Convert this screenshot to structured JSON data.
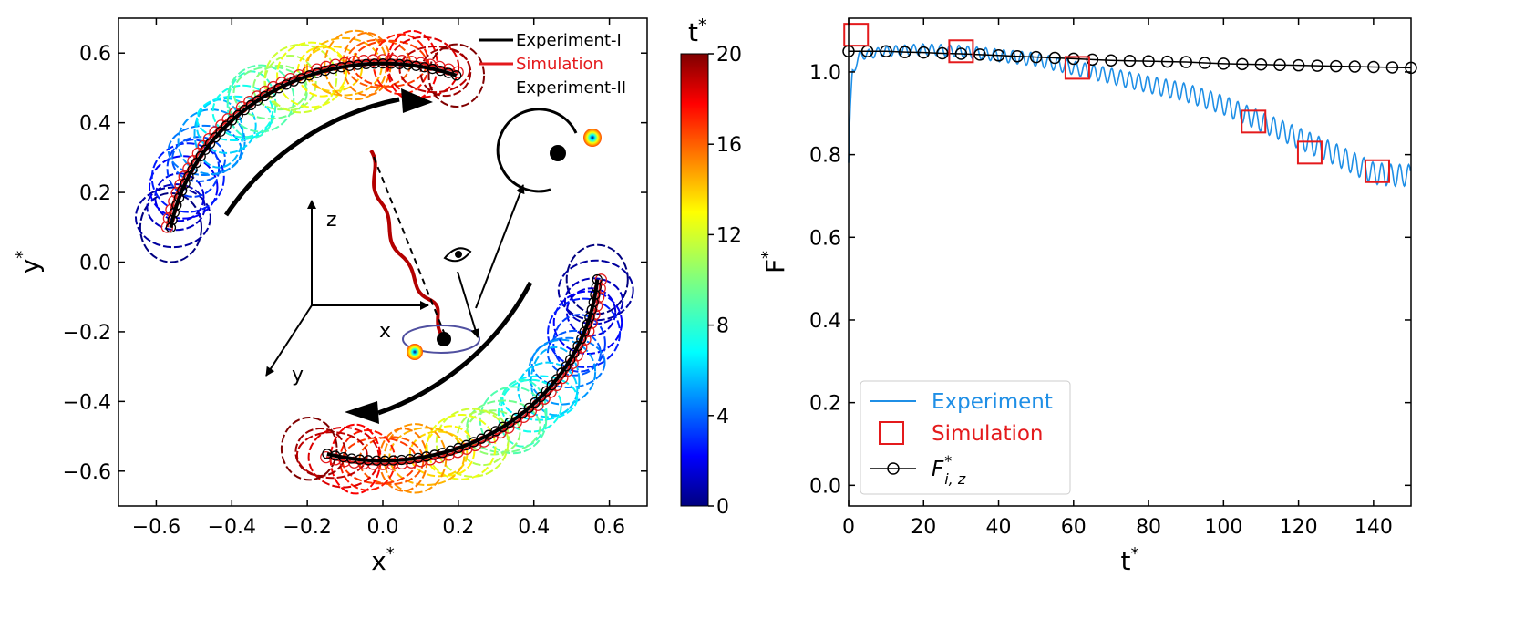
{
  "chart_data": [
    {
      "type": "scatter",
      "xlabel": "x",
      "xlabel_sup": "*",
      "ylabel": "y",
      "ylabel_sup": "*",
      "xlim": [
        -0.7,
        0.7
      ],
      "ylim": [
        -0.7,
        0.7
      ],
      "xticks": [
        "−0.6",
        "−0.4",
        "−0.2",
        "0.0",
        "0.2",
        "0.4",
        "0.6"
      ],
      "xtick_values": [
        -0.6,
        -0.4,
        -0.2,
        0.0,
        0.2,
        0.4,
        0.6
      ],
      "yticks": [
        "−0.6",
        "−0.4",
        "−0.2",
        "0.0",
        "0.2",
        "0.4",
        "0.6"
      ],
      "ytick_values": [
        -0.6,
        -0.4,
        -0.2,
        0.0,
        0.2,
        0.4,
        0.6
      ],
      "legend_position": "top-right",
      "legend": [
        {
          "label": "Experiment-I",
          "color": "#000000"
        },
        {
          "label": "Simulation",
          "color": "#e41a1c"
        },
        {
          "label": "Experiment-II",
          "color": "rainbow"
        }
      ],
      "colorbar": {
        "label": "t",
        "label_sup": "*",
        "range": [
          0,
          20
        ],
        "ticks": [
          "0",
          "4",
          "8",
          "12",
          "16",
          "20"
        ],
        "tick_values": [
          0,
          4,
          8,
          12,
          16,
          20
        ],
        "colormap": "jet"
      },
      "series": [
        {
          "name": "Experiment-I",
          "arcs": [
            {
              "center": [
                0.0,
                0.0
              ],
              "radius": 0.57,
              "theta_start_deg": 70,
              "theta_end_deg": 170
            },
            {
              "center": [
                0.0,
                0.0
              ],
              "radius": 0.57,
              "theta_start_deg": 255,
              "theta_end_deg": 355
            }
          ]
        },
        {
          "name": "Simulation",
          "arcs": [
            {
              "center": [
                0.0,
                0.0
              ],
              "radius": 0.58,
              "theta_start_deg": 70,
              "theta_end_deg": 170
            },
            {
              "center": [
                0.0,
                0.0
              ],
              "radius": 0.58,
              "theta_start_deg": 255,
              "theta_end_deg": 355
            }
          ]
        },
        {
          "name": "Experiment-II",
          "loop_radius": 0.09,
          "t_range": [
            0,
            20
          ],
          "arcs": [
            {
              "center": [
                0.0,
                0.0
              ],
              "radius": 0.57,
              "theta_start_deg": 170,
              "theta_end_deg": 70
            },
            {
              "center": [
                0.0,
                0.0
              ],
              "radius": 0.57,
              "theta_start_deg": 355,
              "theta_end_deg": 250
            }
          ]
        }
      ],
      "inset_labels": {
        "z": "z",
        "x": "x",
        "y": "y"
      }
    },
    {
      "type": "line",
      "xlabel": "t",
      "xlabel_sup": "*",
      "ylabel": "F",
      "ylabel_sup": "*",
      "xlim": [
        0,
        150
      ],
      "ylim": [
        -0.05,
        1.13
      ],
      "xticks": [
        "0",
        "20",
        "40",
        "60",
        "80",
        "100",
        "120",
        "140"
      ],
      "xtick_values": [
        0,
        20,
        40,
        60,
        80,
        100,
        120,
        140
      ],
      "yticks": [
        "0.0",
        "0.2",
        "0.4",
        "0.6",
        "0.8",
        "1.0"
      ],
      "ytick_values": [
        0.0,
        0.2,
        0.4,
        0.6,
        0.8,
        1.0
      ],
      "legend_position": "bottom-left",
      "legend": [
        {
          "label": "Experiment",
          "color": "#1f8fe6"
        },
        {
          "label": "Simulation",
          "color": "#e41a1c"
        },
        {
          "label": "F",
          "label_sub": "i, z",
          "label_sup": "*",
          "color": "#000000"
        }
      ],
      "series": [
        {
          "name": "Experiment",
          "style": "oscillating",
          "oscillation_period": 2.4,
          "trend_x": [
            0,
            0.4,
            1,
            3,
            10,
            20,
            30,
            40,
            50,
            60,
            70,
            80,
            90,
            100,
            110,
            120,
            130,
            140,
            145,
            150
          ],
          "trend_y": [
            0.78,
            0.9,
            1.0,
            1.04,
            1.05,
            1.055,
            1.05,
            1.04,
            1.03,
            1.01,
            0.99,
            0.97,
            0.95,
            0.92,
            0.88,
            0.84,
            0.8,
            0.755,
            0.75,
            0.75
          ],
          "amplitude_x": [
            0,
            10,
            40,
            60,
            90,
            110,
            130,
            150
          ],
          "amplitude_y": [
            0.01,
            0.012,
            0.015,
            0.017,
            0.022,
            0.024,
            0.026,
            0.026
          ]
        },
        {
          "name": "Simulation",
          "x": [
            2,
            30,
            61,
            108,
            123,
            141
          ],
          "y": [
            1.09,
            1.05,
            1.01,
            0.88,
            0.805,
            0.76
          ]
        },
        {
          "name": "F_i,z*",
          "x": [
            0,
            5,
            10,
            15,
            20,
            25,
            30,
            35,
            40,
            45,
            50,
            55,
            60,
            65,
            70,
            75,
            80,
            85,
            90,
            95,
            100,
            105,
            110,
            115,
            120,
            125,
            130,
            135,
            140,
            145,
            150
          ],
          "y": [
            1.05,
            1.05,
            1.05,
            1.048,
            1.047,
            1.045,
            1.044,
            1.042,
            1.04,
            1.038,
            1.036,
            1.034,
            1.032,
            1.03,
            1.028,
            1.027,
            1.026,
            1.025,
            1.024,
            1.022,
            1.02,
            1.019,
            1.018,
            1.017,
            1.016,
            1.015,
            1.014,
            1.013,
            1.012,
            1.011,
            1.01
          ]
        }
      ]
    }
  ]
}
